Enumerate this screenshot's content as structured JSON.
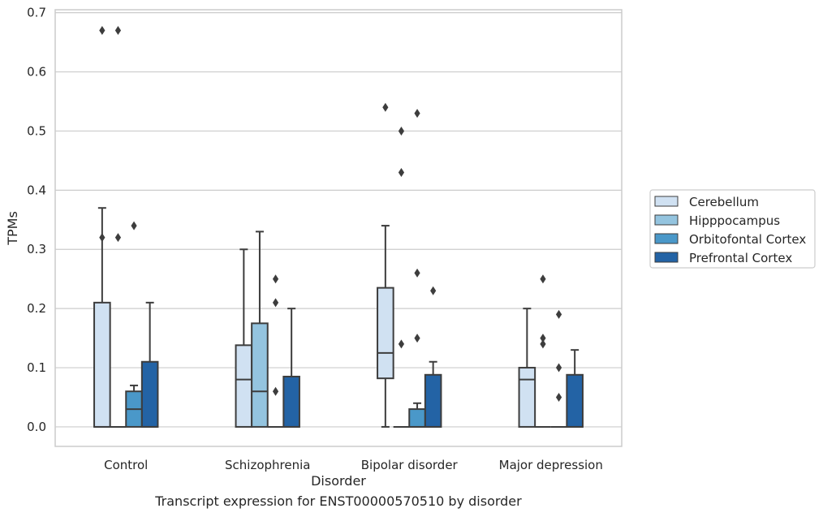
{
  "caption": "Transcript expression for ENST00000570510 by disorder",
  "chart_data": {
    "type": "boxplot",
    "xlabel": "Disorder",
    "ylabel": "TPMs",
    "ylim": [
      -0.033,
      0.705
    ],
    "yticks": [
      0.0,
      0.1,
      0.2,
      0.3,
      0.4,
      0.5,
      0.6,
      0.7
    ],
    "ytick_labels": [
      "0.0",
      "0.1",
      "0.2",
      "0.3",
      "0.4",
      "0.5",
      "0.6",
      "0.7"
    ],
    "categories": [
      "Control",
      "Schizophrenia",
      "Bipolar disorder",
      "Major depression"
    ],
    "grid": "horizontal",
    "legend_placement": "right",
    "series": [
      {
        "name": "Cerebellum",
        "color": "#d0e1f2",
        "boxes": [
          {
            "whislo": 0.0,
            "q1": 0.0,
            "med": 0.0,
            "q3": 0.21,
            "whishi": 0.37,
            "fliers": [
              0.67,
              0.32
            ]
          },
          {
            "whislo": 0.0,
            "q1": 0.0,
            "med": 0.08,
            "q3": 0.138,
            "whishi": 0.3,
            "fliers": []
          },
          {
            "whislo": 0.0,
            "q1": 0.082,
            "med": 0.125,
            "q3": 0.235,
            "whishi": 0.34,
            "fliers": [
              0.54
            ]
          },
          {
            "whislo": 0.0,
            "q1": 0.0,
            "med": 0.08,
            "q3": 0.1,
            "whishi": 0.2,
            "fliers": []
          }
        ]
      },
      {
        "name": "Hipppocampus",
        "color": "#94c4df",
        "boxes": [
          {
            "whislo": 0.0,
            "q1": 0.0,
            "med": 0.0,
            "q3": 0.0,
            "whishi": 0.0,
            "fliers": [
              0.67,
              0.32
            ]
          },
          {
            "whislo": 0.0,
            "q1": 0.0,
            "med": 0.06,
            "q3": 0.175,
            "whishi": 0.33,
            "fliers": []
          },
          {
            "whislo": 0.0,
            "q1": 0.0,
            "med": 0.0,
            "q3": 0.0,
            "whishi": 0.0,
            "fliers": [
              0.14,
              0.43,
              0.5
            ]
          },
          {
            "whislo": 0.0,
            "q1": 0.0,
            "med": 0.0,
            "q3": 0.0,
            "whishi": 0.0,
            "fliers": [
              0.25,
              0.15,
              0.14
            ]
          }
        ]
      },
      {
        "name": "Orbitofontal Cortex",
        "color": "#4a98c9",
        "boxes": [
          {
            "whislo": 0.0,
            "q1": 0.0,
            "med": 0.03,
            "q3": 0.06,
            "whishi": 0.07,
            "fliers": [
              0.34
            ]
          },
          {
            "whislo": 0.0,
            "q1": 0.0,
            "med": 0.0,
            "q3": 0.0,
            "whishi": 0.0,
            "fliers": [
              0.25,
              0.21,
              0.06
            ]
          },
          {
            "whislo": 0.0,
            "q1": 0.0,
            "med": 0.0,
            "q3": 0.03,
            "whishi": 0.04,
            "fliers": [
              0.53,
              0.26,
              0.15
            ]
          },
          {
            "whislo": 0.0,
            "q1": 0.0,
            "med": 0.0,
            "q3": 0.0,
            "whishi": 0.0,
            "fliers": [
              0.19,
              0.1,
              0.05
            ]
          }
        ]
      },
      {
        "name": "Prefrontal Cortex",
        "color": "#2363a5",
        "boxes": [
          {
            "whislo": 0.0,
            "q1": 0.0,
            "med": 0.0,
            "q3": 0.11,
            "whishi": 0.21,
            "fliers": []
          },
          {
            "whislo": 0.0,
            "q1": 0.0,
            "med": 0.0,
            "q3": 0.085,
            "whishi": 0.2,
            "fliers": []
          },
          {
            "whislo": 0.0,
            "q1": 0.0,
            "med": 0.0,
            "q3": 0.088,
            "whishi": 0.11,
            "fliers": [
              0.23
            ]
          },
          {
            "whislo": 0.0,
            "q1": 0.0,
            "med": 0.0,
            "q3": 0.088,
            "whishi": 0.13,
            "fliers": []
          }
        ]
      }
    ]
  }
}
